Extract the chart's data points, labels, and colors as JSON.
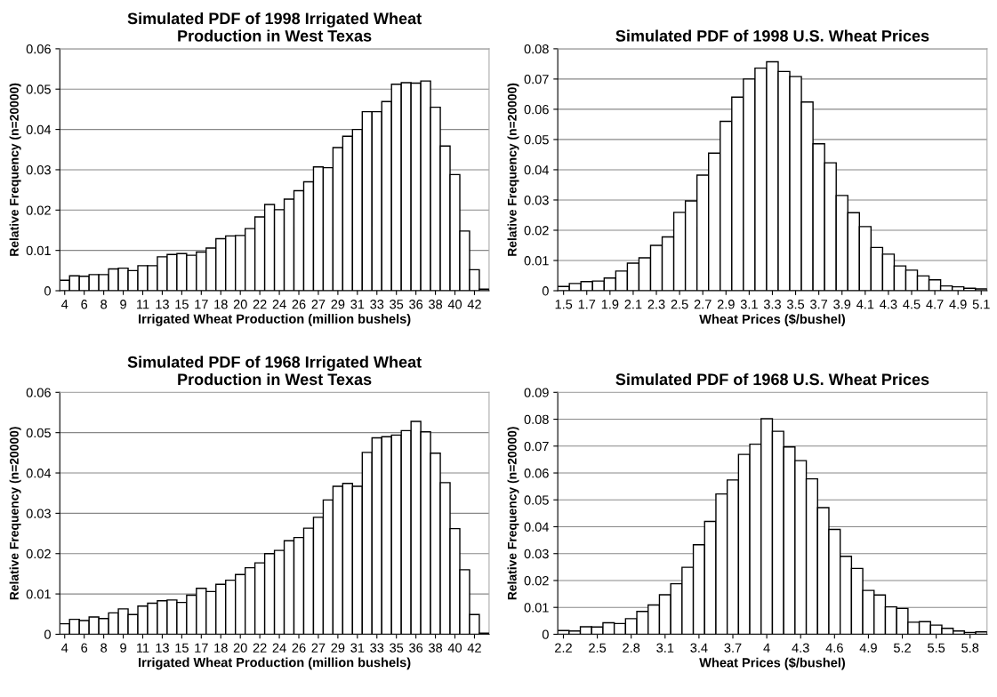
{
  "chart_data": [
    {
      "type": "bar",
      "title": "Simulated PDF of 1998 Irrigated Wheat\nProduction in West Texas",
      "xlabel": "Irrigated Wheat Production (million bushels)",
      "ylabel": "Relative Frequency (n=20000)",
      "categories": [
        "4",
        null,
        "6",
        null,
        "8",
        null,
        "9",
        null,
        "11",
        null,
        "13",
        null,
        "15",
        null,
        "17",
        null,
        "18",
        null,
        "20",
        null,
        "22",
        null,
        "24",
        null,
        "26",
        null,
        "27",
        null,
        "29",
        null,
        "31",
        null,
        "33",
        null,
        "35",
        null,
        "36",
        null,
        "38",
        null,
        "40",
        null,
        "42",
        null
      ],
      "values": [
        0.0026,
        0.0037,
        0.0036,
        0.004,
        0.004,
        0.0054,
        0.0056,
        0.005,
        0.0062,
        0.0062,
        0.0084,
        0.009,
        0.0092,
        0.0088,
        0.0096,
        0.0106,
        0.0129,
        0.0136,
        0.0137,
        0.0154,
        0.0183,
        0.0214,
        0.0201,
        0.0227,
        0.0248,
        0.027,
        0.0307,
        0.0305,
        0.0355,
        0.0383,
        0.04,
        0.0444,
        0.0444,
        0.0469,
        0.0512,
        0.0516,
        0.0515,
        0.052,
        0.0455,
        0.0359,
        0.0288,
        0.0148,
        0.0052,
        0.0004
      ],
      "color": "#ffffff",
      "ylim": [
        0,
        0.06
      ],
      "yticks": [
        0,
        0.01,
        0.02,
        0.03,
        0.04,
        0.05,
        0.06
      ],
      "grid": "y"
    },
    {
      "type": "bar",
      "title": "Simulated PDF of 1998 U.S. Wheat Prices",
      "xlabel": "Wheat Prices ($/bushel)",
      "ylabel": "Relative Frequency (n=20000)",
      "categories": [
        "1.5",
        null,
        "1.7",
        null,
        "1.9",
        null,
        "2.1",
        null,
        "2.3",
        null,
        "2.5",
        null,
        "2.7",
        null,
        "2.9",
        null,
        "3.1",
        null,
        "3.3",
        null,
        "3.5",
        null,
        "3.7",
        null,
        "3.9",
        null,
        "4.1",
        null,
        "4.3",
        null,
        "4.5",
        null,
        "4.7",
        null,
        "4.9",
        null,
        "5.1"
      ],
      "values": [
        0.0014,
        0.0024,
        0.003,
        0.0032,
        0.0042,
        0.0065,
        0.0091,
        0.0109,
        0.015,
        0.0178,
        0.0259,
        0.0297,
        0.0382,
        0.0455,
        0.056,
        0.064,
        0.07,
        0.0736,
        0.0757,
        0.0725,
        0.0708,
        0.0624,
        0.0486,
        0.0423,
        0.0315,
        0.0258,
        0.0212,
        0.0143,
        0.0121,
        0.0082,
        0.0068,
        0.0049,
        0.0036,
        0.0016,
        0.0013,
        0.0008,
        0.0006
      ],
      "color": "#ffffff",
      "ylim": [
        0,
        0.08
      ],
      "yticks": [
        0,
        0.01,
        0.02,
        0.03,
        0.04,
        0.05,
        0.06,
        0.07,
        0.08
      ],
      "grid": "y"
    },
    {
      "type": "bar",
      "title": "Simulated PDF of 1968 Irrigated Wheat\nProduction in West Texas",
      "xlabel": "Irrigated Wheat Production (million bushels)",
      "ylabel": "Relative Frequency (n=20000)",
      "categories": [
        "4",
        null,
        "6",
        null,
        "8",
        null,
        "9",
        null,
        "11",
        null,
        "13",
        null,
        "15",
        null,
        "17",
        null,
        "18",
        null,
        "20",
        null,
        "22",
        null,
        "24",
        null,
        "26",
        null,
        "27",
        null,
        "29",
        null,
        "31",
        null,
        "33",
        null,
        "35",
        null,
        "36",
        null,
        "38",
        null,
        "40",
        null,
        "42",
        null
      ],
      "values": [
        0.0026,
        0.0037,
        0.0034,
        0.0043,
        0.0039,
        0.0053,
        0.0063,
        0.0049,
        0.007,
        0.0077,
        0.0083,
        0.0085,
        0.0079,
        0.0097,
        0.0114,
        0.0106,
        0.0124,
        0.0134,
        0.0148,
        0.0165,
        0.0177,
        0.02,
        0.0208,
        0.0232,
        0.024,
        0.0263,
        0.029,
        0.0333,
        0.0367,
        0.0374,
        0.0367,
        0.0451,
        0.0487,
        0.049,
        0.0494,
        0.0505,
        0.0528,
        0.0502,
        0.0449,
        0.0376,
        0.0262,
        0.016,
        0.0049,
        0.0003
      ],
      "color": "#ffffff",
      "ylim": [
        0,
        0.06
      ],
      "yticks": [
        0,
        0.01,
        0.02,
        0.03,
        0.04,
        0.05,
        0.06
      ],
      "grid": "y"
    },
    {
      "type": "bar",
      "title": "Simulated PDF of 1968 U.S. Wheat Prices",
      "xlabel": "Wheat Prices ($/bushel)",
      "ylabel": "Relative Frequency (n=20000)",
      "categories": [
        "2.2",
        null,
        null,
        "2.5",
        null,
        null,
        "2.8",
        null,
        null,
        "3.1",
        null,
        null,
        "3.4",
        null,
        null,
        "3.7",
        null,
        null,
        "4",
        null,
        null,
        "4.3",
        null,
        null,
        "4.6",
        null,
        null,
        "4.9",
        null,
        null,
        "5.2",
        null,
        null,
        "5.5",
        null,
        null,
        "5.8",
        null
      ],
      "values": [
        0.0014,
        0.0012,
        0.0028,
        0.0027,
        0.0043,
        0.004,
        0.0058,
        0.0085,
        0.0109,
        0.0147,
        0.0188,
        0.0249,
        0.0333,
        0.042,
        0.0522,
        0.0574,
        0.0669,
        0.0707,
        0.0802,
        0.0755,
        0.0697,
        0.0646,
        0.0578,
        0.0471,
        0.039,
        0.029,
        0.0245,
        0.0163,
        0.0146,
        0.0102,
        0.0096,
        0.0045,
        0.0047,
        0.0034,
        0.0022,
        0.0012,
        0.0007,
        0.0009
      ],
      "color": "#ffffff",
      "ylim": [
        0,
        0.09
      ],
      "yticks": [
        0,
        0.01,
        0.02,
        0.03,
        0.04,
        0.05,
        0.06,
        0.07,
        0.08,
        0.09
      ],
      "grid": "y"
    }
  ]
}
